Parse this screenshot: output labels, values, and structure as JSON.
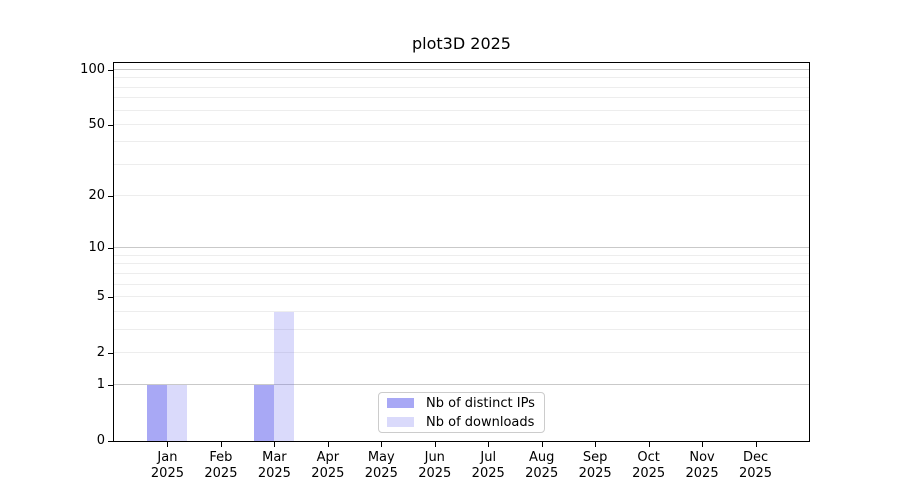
{
  "title": "plot3D 2025",
  "chart_data": {
    "type": "bar",
    "title": "plot3D 2025",
    "categories": [
      "Jan",
      "Feb",
      "Mar",
      "Apr",
      "May",
      "Jun",
      "Jul",
      "Aug",
      "Sep",
      "Oct",
      "Nov",
      "Dec"
    ],
    "x_tick_year": "2025",
    "series": [
      {
        "name": "Nb of distinct IPs",
        "key": "distinct-ips",
        "color": "rgba(88,88,235,0.52)",
        "values": [
          1,
          0,
          1,
          0,
          0,
          0,
          0,
          0,
          0,
          0,
          0,
          0
        ]
      },
      {
        "name": "Nb of downloads",
        "key": "downloads",
        "color": "rgba(88,88,235,0.22)",
        "values": [
          1,
          0,
          4,
          0,
          0,
          0,
          0,
          0,
          0,
          0,
          0,
          0
        ]
      }
    ],
    "y_scale": "log1p",
    "y_ticks": [
      0,
      1,
      2,
      5,
      10,
      20,
      50,
      100
    ],
    "ylim": [
      0,
      100
    ],
    "grid_major_values": [
      1,
      10,
      100
    ],
    "grid_minor_values": [
      2,
      3,
      4,
      5,
      6,
      7,
      8,
      9,
      20,
      30,
      40,
      50,
      60,
      70,
      80,
      90
    ],
    "legend": {
      "position": "lower center"
    }
  },
  "colors": {
    "background": "#ffffff",
    "axis": "#000000",
    "grid_major": "#c9c9c9",
    "grid_minor": "#ededed",
    "legend_border": "#cccccc",
    "bar_distinct_ips_hex": "#a8a8f5",
    "bar_downloads_hex": "#dadafb"
  }
}
